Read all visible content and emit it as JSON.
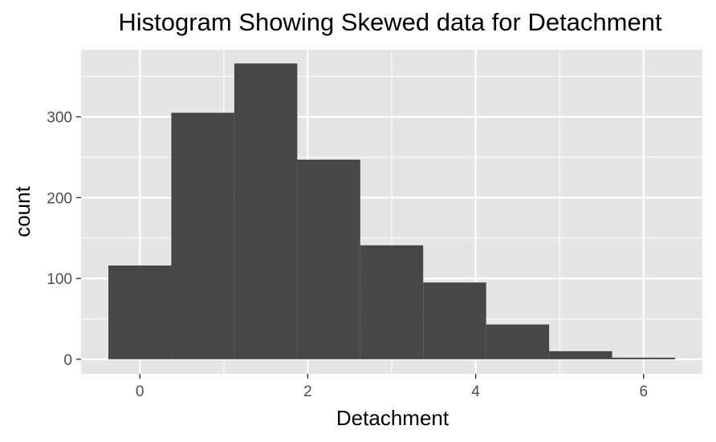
{
  "chart_data": {
    "type": "bar",
    "title": "Histogram Showing Skewed data for Detachment",
    "xlabel": "Detachment",
    "ylabel": "count",
    "bin_edges": [
      -0.375,
      0.375,
      1.125,
      1.875,
      2.625,
      3.375,
      4.125,
      4.875,
      5.625,
      6.375
    ],
    "values": [
      116,
      305,
      366,
      247,
      141,
      95,
      43,
      10,
      2
    ],
    "xlim": [
      -0.7,
      6.7
    ],
    "ylim": [
      -18,
      383
    ],
    "xticks": [
      0,
      2,
      4,
      6
    ],
    "xtick_labels": [
      "0",
      "2",
      "4",
      "6"
    ],
    "yticks": [
      0,
      100,
      200,
      300
    ],
    "ytick_labels": [
      "0",
      "100",
      "200",
      "300"
    ],
    "x_minor_gridlines": [
      1,
      3,
      5
    ],
    "y_minor_gridlines": [
      50,
      150,
      250,
      350
    ],
    "grid": true,
    "legend": "none",
    "colors": {
      "panel_background": "#e5e5e5",
      "gridline": "#ffffff",
      "bar_fill": "#474747",
      "tick_mark": "#333333"
    }
  }
}
